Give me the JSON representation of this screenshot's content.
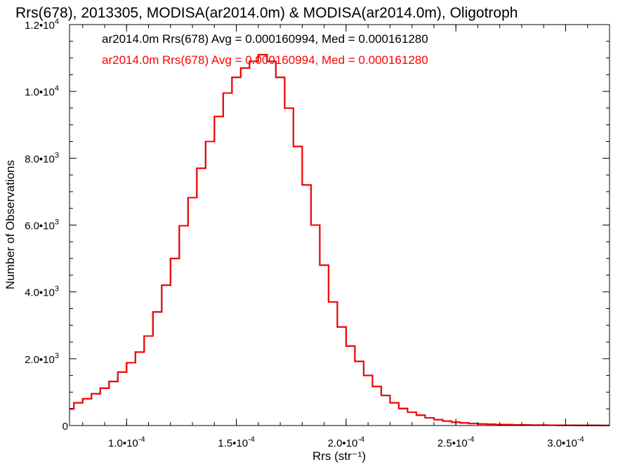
{
  "chart_data": {
    "type": "line",
    "title": "Rrs(678), 2013305, MODISA(ar2014.0m) & MODISA(ar2014.0m), Oligotroph",
    "xlabel": "Rrs (str⁻¹)",
    "ylabel": "Number of Observations",
    "xlim": [
      7.4e-05,
      0.00032
    ],
    "ylim": [
      0,
      12000
    ],
    "grid": false,
    "x_ticks": [
      {
        "value": 0.0001,
        "label": "1.0•10",
        "exp": "-4"
      },
      {
        "value": 0.00015,
        "label": "1.5•10",
        "exp": "-4"
      },
      {
        "value": 0.0002,
        "label": "2.0•10",
        "exp": "-4"
      },
      {
        "value": 0.00025,
        "label": "2.5•10",
        "exp": "-4"
      },
      {
        "value": 0.0003,
        "label": "3.0•10",
        "exp": "-4"
      }
    ],
    "y_ticks": [
      {
        "value": 0,
        "label": "0",
        "exp": ""
      },
      {
        "value": 2000,
        "label": "2.0•10",
        "exp": "3"
      },
      {
        "value": 4000,
        "label": "4.0•10",
        "exp": "3"
      },
      {
        "value": 6000,
        "label": "6.0•10",
        "exp": "3"
      },
      {
        "value": 8000,
        "label": "8.0•10",
        "exp": "3"
      },
      {
        "value": 10000,
        "label": "1.0•10",
        "exp": "4"
      },
      {
        "value": 12000,
        "label": "1.2•10",
        "exp": "4"
      }
    ],
    "legend": [
      {
        "text": "ar2014.0m Rrs(678) Avg = 0.000160994, Med = 0.000161280",
        "color": "#000000"
      },
      {
        "text": "ar2014.0m Rrs(678) Avg = 0.000160994, Med = 0.000161280",
        "color": "#ff0000"
      }
    ],
    "legend_position": "top-left",
    "series": [
      {
        "color": "#000000",
        "x": [
          7.4e-05,
          7.8e-05,
          8.2e-05,
          8.6e-05,
          9e-05,
          9.4e-05,
          9.8e-05,
          0.000102,
          0.000106,
          0.00011,
          0.000114,
          0.000118,
          0.000122,
          0.000126,
          0.00013,
          0.000134,
          0.000138,
          0.000142,
          0.000146,
          0.00015,
          0.000154,
          0.000158,
          0.000162,
          0.000166,
          0.00017,
          0.000174,
          0.000178,
          0.000182,
          0.000186,
          0.00019,
          0.000194,
          0.000198,
          0.000202,
          0.000206,
          0.00021,
          0.000214,
          0.000218,
          0.000222,
          0.000226,
          0.00023,
          0.000234,
          0.000238,
          0.000242,
          0.000246,
          0.00025,
          0.000254,
          0.000258,
          0.000262,
          0.000266,
          0.00027,
          0.000274,
          0.000278,
          0.000282,
          0.000286,
          0.00029,
          0.000294,
          0.000298,
          0.000302,
          0.000306,
          0.00031,
          0.000314,
          0.000318
        ],
        "y": [
          500,
          680,
          800,
          950,
          1120,
          1320,
          1600,
          1880,
          2200,
          2680,
          3400,
          4200,
          5000,
          5980,
          6820,
          7700,
          8500,
          9250,
          9950,
          10420,
          10700,
          10900,
          11100,
          10900,
          10420,
          9500,
          8350,
          7200,
          6000,
          4800,
          3700,
          2950,
          2380,
          1920,
          1500,
          1170,
          900,
          680,
          510,
          400,
          310,
          230,
          175,
          135,
          100,
          78,
          60,
          48,
          40,
          32,
          26,
          22,
          18,
          14,
          12,
          10,
          8,
          7,
          6,
          5,
          4,
          3
        ]
      },
      {
        "color": "#ff0000",
        "x": [
          7.4e-05,
          7.8e-05,
          8.2e-05,
          8.6e-05,
          9e-05,
          9.4e-05,
          9.8e-05,
          0.000102,
          0.000106,
          0.00011,
          0.000114,
          0.000118,
          0.000122,
          0.000126,
          0.00013,
          0.000134,
          0.000138,
          0.000142,
          0.000146,
          0.00015,
          0.000154,
          0.000158,
          0.000162,
          0.000166,
          0.00017,
          0.000174,
          0.000178,
          0.000182,
          0.000186,
          0.00019,
          0.000194,
          0.000198,
          0.000202,
          0.000206,
          0.00021,
          0.000214,
          0.000218,
          0.000222,
          0.000226,
          0.00023,
          0.000234,
          0.000238,
          0.000242,
          0.000246,
          0.00025,
          0.000254,
          0.000258,
          0.000262,
          0.000266,
          0.00027,
          0.000274,
          0.000278,
          0.000282,
          0.000286,
          0.00029,
          0.000294,
          0.000298,
          0.000302,
          0.000306,
          0.00031,
          0.000314,
          0.000318
        ],
        "y": [
          500,
          680,
          800,
          950,
          1120,
          1320,
          1600,
          1880,
          2200,
          2680,
          3400,
          4200,
          5000,
          5980,
          6820,
          7700,
          8500,
          9250,
          9950,
          10420,
          10700,
          10900,
          11100,
          10900,
          10420,
          9500,
          8350,
          7200,
          6000,
          4800,
          3700,
          2950,
          2380,
          1920,
          1500,
          1170,
          900,
          680,
          510,
          400,
          310,
          230,
          175,
          135,
          100,
          78,
          60,
          48,
          40,
          32,
          26,
          22,
          18,
          14,
          12,
          10,
          8,
          7,
          6,
          5,
          4,
          3
        ]
      }
    ]
  }
}
